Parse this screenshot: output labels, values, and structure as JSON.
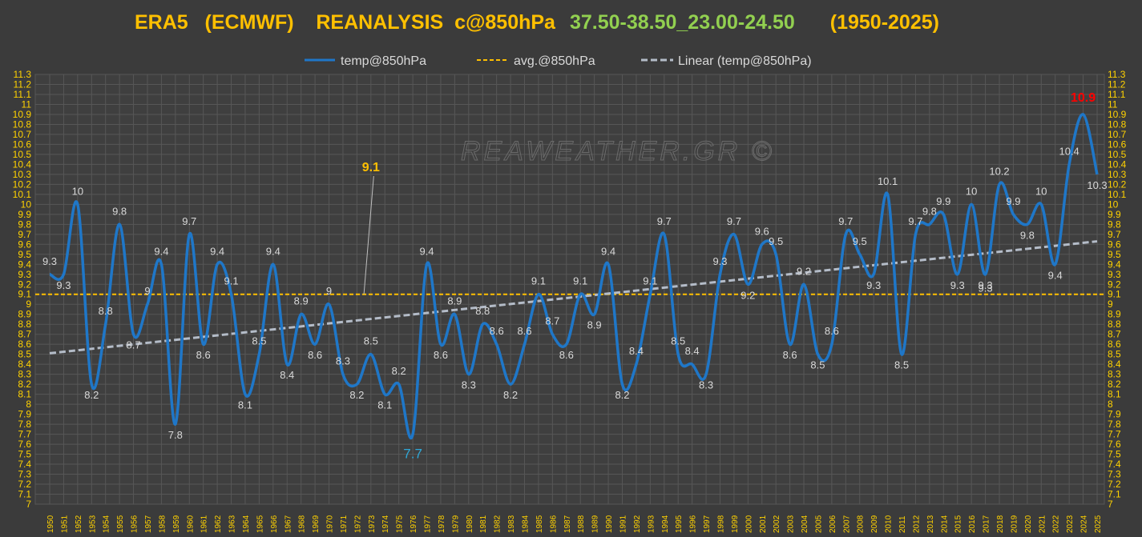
{
  "title": {
    "part1": "ERA5   (ECMWF)    REANALYSIS  c@850hPa",
    "part2": "37.50-38.50_23.00-24.50",
    "part3": "(1950-2025)",
    "color1": "#ffc000",
    "color2": "#92d050",
    "color3": "#ffc000"
  },
  "legend": {
    "temp": "temp@850hPa",
    "avg": "avg.@850hPa",
    "linear": "Linear (temp@850hPa)"
  },
  "watermark": "REAWEATHER.GR ©",
  "colors": {
    "temp": "#1f77c8",
    "avg": "#ffc000",
    "trend": "#b4bcc8",
    "max_label": "#ff0000",
    "min_label": "#2ea8d8",
    "avg_label": "#ffc000",
    "tick": "#ffd200"
  },
  "chart_data": {
    "type": "line",
    "title": "ERA5   (ECMWF)    REANALYSIS  c@850hPa  37.50-38.50_23.00-24.50  (1950-2025)",
    "x": [
      "1950",
      "1951",
      "1952",
      "1953",
      "1954",
      "1955",
      "1956",
      "1957",
      "1958",
      "1959",
      "1960",
      "1961",
      "1962",
      "1963",
      "1964",
      "1965",
      "1966",
      "1967",
      "1968",
      "1969",
      "1970",
      "1971",
      "1972",
      "1973",
      "1974",
      "1975",
      "1976",
      "1977",
      "1978",
      "1979",
      "1980",
      "1981",
      "1982",
      "1983",
      "1984",
      "1985",
      "1986",
      "1987",
      "1988",
      "1989",
      "1990",
      "1991",
      "1992",
      "1993",
      "1994",
      "1995",
      "1996",
      "1997",
      "1998",
      "1999",
      "2000",
      "2001",
      "2002",
      "2003",
      "2004",
      "2005",
      "2006",
      "2007",
      "2008",
      "2009",
      "2010",
      "2011",
      "2012",
      "2013",
      "2014",
      "2015",
      "2016",
      "2017",
      "2018",
      "2019",
      "2020",
      "2021",
      "2022",
      "2023",
      "2024",
      "2025"
    ],
    "series": [
      {
        "name": "temp@850hPa",
        "values": [
          9.3,
          9.3,
          10.0,
          8.2,
          8.8,
          9.8,
          8.7,
          9.0,
          9.4,
          7.8,
          9.7,
          8.6,
          9.4,
          9.1,
          8.1,
          8.5,
          9.4,
          8.4,
          8.9,
          8.6,
          9.0,
          8.3,
          8.2,
          8.5,
          8.1,
          8.2,
          7.7,
          9.4,
          8.6,
          8.9,
          8.3,
          8.8,
          8.6,
          8.2,
          8.6,
          9.1,
          8.7,
          8.6,
          9.1,
          8.9,
          9.4,
          8.2,
          8.4,
          9.1,
          9.7,
          8.5,
          8.4,
          8.3,
          9.3,
          9.7,
          9.2,
          9.6,
          9.5,
          8.6,
          9.2,
          8.5,
          8.6,
          9.7,
          9.5,
          9.3,
          10.1,
          8.5,
          9.7,
          9.8,
          9.9,
          9.3,
          10.0,
          9.3,
          10.2,
          9.9,
          9.8,
          10.0,
          9.4,
          10.4,
          10.9,
          10.3
        ]
      },
      {
        "name": "avg.@850hPa",
        "value": 9.1
      },
      {
        "name": "Linear (temp@850hPa)",
        "start": 8.51,
        "end": 9.63
      }
    ],
    "labels": {
      "avg_callout": "9.1",
      "avg_line_label": "9.3",
      "max_year": "2024",
      "min_year": "1976"
    },
    "ylim": [
      7,
      11.3
    ],
    "ystep": 0.1,
    "xlabel": "",
    "ylabel": "",
    "grid": true,
    "legend_position": "top"
  }
}
